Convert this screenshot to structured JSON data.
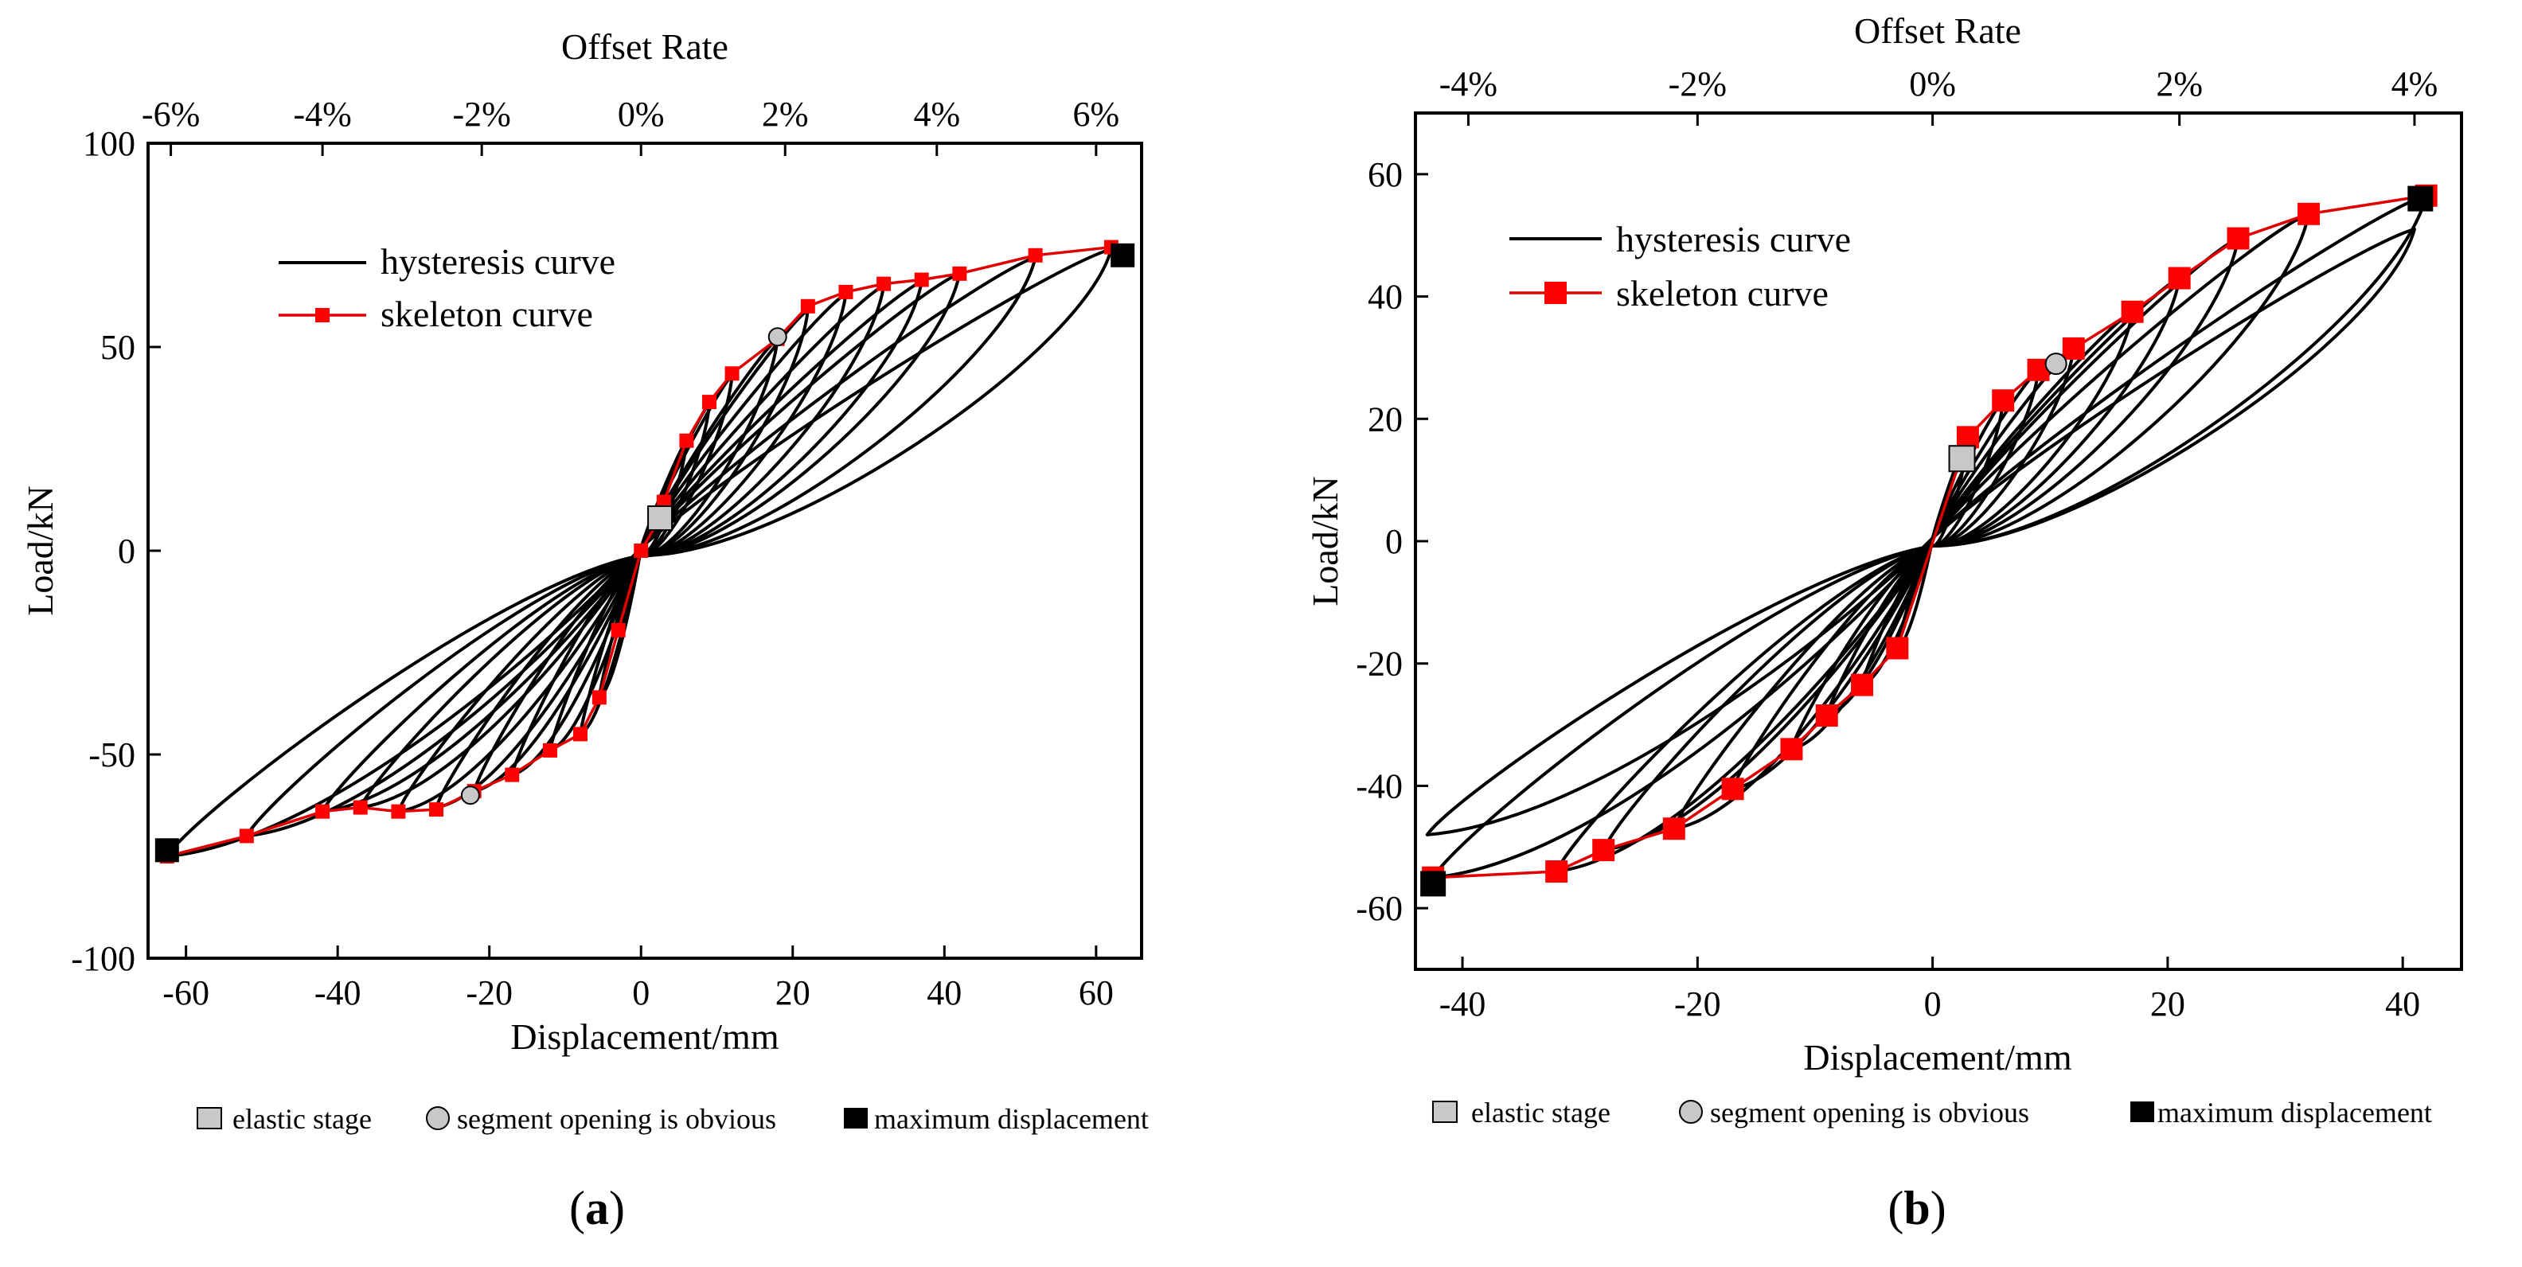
{
  "chart_data": [
    {
      "id": "a",
      "type": "line",
      "panel_label": "a",
      "xlabel": "Displacement/mm",
      "ylabel": "Load/kN",
      "top_xlabel": "Offset Rate",
      "xlim": [
        -65,
        66
      ],
      "ylim": [
        -100,
        100
      ],
      "xticks": [
        -60,
        -40,
        -20,
        0,
        20,
        40,
        60
      ],
      "yticks": [
        -100,
        -50,
        0,
        50,
        100
      ],
      "top_ticks": [
        {
          "x": -62,
          "label": "-6%"
        },
        {
          "x": -42,
          "label": "-4%"
        },
        {
          "x": -21,
          "label": "-2%"
        },
        {
          "x": 0,
          "label": "0%"
        },
        {
          "x": 19,
          "label": "2%"
        },
        {
          "x": 39,
          "label": "4%"
        },
        {
          "x": 60,
          "label": "6%"
        }
      ],
      "legend": [
        "hysteresis curve",
        "skeleton curve"
      ],
      "skeleton": {
        "name": "skeleton curve",
        "color": "#ff0000",
        "x": [
          -62.5,
          -52,
          -42,
          -37,
          -32,
          -27,
          -22,
          -17,
          -12,
          -8,
          -5.5,
          -3,
          0,
          2.5,
          3,
          6,
          9,
          12,
          18,
          22,
          27,
          32,
          37,
          42,
          52,
          62
        ],
        "y": [
          -75,
          -70,
          -64,
          -63,
          -64,
          -63.5,
          -59,
          -55,
          -49,
          -45,
          -36,
          -19.5,
          0,
          8,
          12,
          27,
          36.5,
          43.5,
          52,
          60,
          63.5,
          65.5,
          66.5,
          68,
          72.5,
          74.5
        ]
      },
      "hysteresis_peaks": {
        "name": "hysteresis curve",
        "color": "#000000",
        "pos": [
          [
            3,
            8
          ],
          [
            6,
            27
          ],
          [
            9,
            36
          ],
          [
            12,
            43
          ],
          [
            18,
            52
          ],
          [
            22,
            59
          ],
          [
            27,
            63
          ],
          [
            32,
            65
          ],
          [
            37,
            66
          ],
          [
            42,
            68
          ],
          [
            52,
            72
          ],
          [
            62,
            74
          ]
        ],
        "neg": [
          [
            -3,
            -19
          ],
          [
            -5.5,
            -36
          ],
          [
            -8,
            -45
          ],
          [
            -12,
            -49
          ],
          [
            -17,
            -55
          ],
          [
            -22,
            -59
          ],
          [
            -27,
            -63
          ],
          [
            -32,
            -64
          ],
          [
            -37,
            -63
          ],
          [
            -42,
            -64
          ],
          [
            -52,
            -70
          ],
          [
            -62.5,
            -75
          ]
        ]
      },
      "markers": [
        {
          "type": "elastic",
          "x": 2.5,
          "y": 8
        },
        {
          "type": "segment",
          "x": 18,
          "y": 52.5
        },
        {
          "type": "segment",
          "x": -22.5,
          "y": -60
        },
        {
          "type": "maximum",
          "x": 63.5,
          "y": 72.5
        },
        {
          "type": "maximum",
          "x": -62.5,
          "y": -73.5
        }
      ],
      "notes": {
        "elastic": "elastic stage",
        "segment": "segment opening is obvious",
        "maximum": "maximum displacement"
      }
    },
    {
      "id": "b",
      "type": "line",
      "panel_label": "b",
      "xlabel": "Displacement/mm",
      "ylabel": "Load/kN",
      "top_xlabel": "Offset Rate",
      "xlim": [
        -44,
        45
      ],
      "ylim": [
        -70,
        70
      ],
      "xticks": [
        -40,
        -20,
        0,
        20,
        40
      ],
      "yticks": [
        -60,
        -40,
        -20,
        0,
        20,
        40,
        60
      ],
      "top_ticks": [
        {
          "x": -39.5,
          "label": "-4%"
        },
        {
          "x": -20,
          "label": "-2%"
        },
        {
          "x": 0,
          "label": "0%"
        },
        {
          "x": 21,
          "label": "2%"
        },
        {
          "x": 41,
          "label": "4%"
        }
      ],
      "legend": [
        "hysteresis curve",
        "skeleton curve"
      ],
      "skeleton": {
        "name": "skeleton curve",
        "color": "#ff0000",
        "x": [
          -42.5,
          -32,
          -28,
          -22,
          -17,
          -12,
          -9,
          -6,
          -3,
          3,
          6,
          9,
          12,
          17,
          21,
          26,
          32,
          42
        ],
        "y": [
          -55,
          -54,
          -50.5,
          -47,
          -40.5,
          -34,
          -28.5,
          -23.5,
          -17.5,
          17,
          23,
          28,
          31.5,
          37.5,
          43,
          49.5,
          53.5,
          56.5
        ]
      },
      "hysteresis_peaks": {
        "name": "hysteresis curve",
        "color": "#000000",
        "pos": [
          [
            3,
            17
          ],
          [
            6,
            23
          ],
          [
            9,
            28
          ],
          [
            12,
            31.5
          ],
          [
            17,
            37.5
          ],
          [
            21,
            43
          ],
          [
            26,
            49.5
          ],
          [
            32,
            53.5
          ],
          [
            41,
            51
          ],
          [
            42,
            56.5
          ]
        ],
        "neg": [
          [
            -3,
            -17.5
          ],
          [
            -6,
            -23.5
          ],
          [
            -9,
            -28.5
          ],
          [
            -12,
            -34
          ],
          [
            -17,
            -40.5
          ],
          [
            -22,
            -47
          ],
          [
            -28,
            -50.5
          ],
          [
            -32,
            -54
          ],
          [
            -43,
            -48
          ],
          [
            -42.5,
            -55
          ]
        ]
      },
      "markers": [
        {
          "type": "elastic",
          "x": 2.5,
          "y": 13.5
        },
        {
          "type": "segment",
          "x": 10.5,
          "y": 29
        },
        {
          "type": "maximum",
          "x": 41.5,
          "y": 56
        },
        {
          "type": "maximum",
          "x": -42.5,
          "y": -56
        }
      ],
      "notes": {
        "elastic": "elastic stage",
        "segment": "segment opening is obvious",
        "maximum": "maximum displacement"
      }
    }
  ]
}
